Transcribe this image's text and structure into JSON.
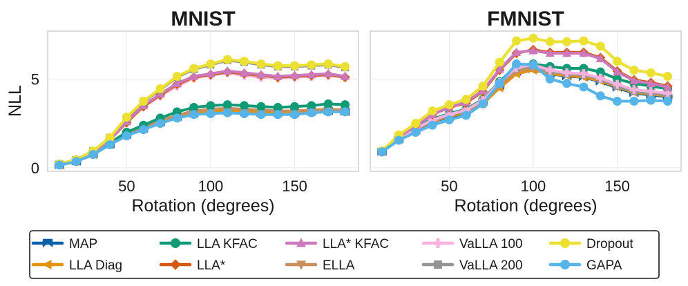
{
  "chart_data": {
    "type": "line",
    "x": [
      10,
      20,
      30,
      40,
      50,
      60,
      70,
      80,
      90,
      100,
      110,
      120,
      130,
      140,
      150,
      160,
      170,
      180
    ],
    "xlabel": "Rotation (degrees)",
    "ylabel": "NLL",
    "xlim": [
      3,
      188
    ],
    "ylim": [
      -0.2,
      7.7
    ],
    "xticks": [
      50,
      100,
      150
    ],
    "yticks": [
      0,
      5
    ],
    "grid": true,
    "legend_position": "bottom-center",
    "styles": {
      "MAP": {
        "color": "#0f5fa8",
        "marker": "bowtie"
      },
      "LLA Diag": {
        "color": "#e1930f",
        "marker": "triangle-left"
      },
      "LLA KFAC": {
        "color": "#109a76",
        "marker": "circle"
      },
      "LLA*": {
        "color": "#d55a0f",
        "marker": "diamond"
      },
      "LLA* KFAC": {
        "color": "#cc78bc",
        "marker": "triangle-up"
      },
      "ELLA": {
        "color": "#c98e5d",
        "marker": "triangle-down"
      },
      "VaLLA 100": {
        "color": "#f9b2de",
        "marker": "plus"
      },
      "VaLLA 200": {
        "color": "#949494",
        "marker": "square"
      },
      "Dropout": {
        "color": "#ece133",
        "marker": "circle"
      },
      "GAPA": {
        "color": "#56b4e9",
        "marker": "circle"
      }
    },
    "legend_order": [
      "MAP",
      "LLA Diag",
      "LLA KFAC",
      "LLA*",
      "LLA* KFAC",
      "ELLA",
      "VaLLA 100",
      "VaLLA 200",
      "Dropout",
      "GAPA"
    ],
    "panels": [
      {
        "title": "MNIST",
        "series": [
          {
            "name": "MAP",
            "values": [
              0.15,
              0.35,
              0.75,
              1.3,
              1.85,
              2.2,
              2.55,
              2.85,
              3.05,
              3.15,
              3.2,
              3.15,
              3.1,
              3.1,
              3.1,
              3.15,
              3.2,
              3.15
            ]
          },
          {
            "name": "LLA Diag",
            "values": [
              0.15,
              0.35,
              0.75,
              1.3,
              1.85,
              2.2,
              2.55,
              2.85,
              3.05,
              3.15,
              3.2,
              3.15,
              3.1,
              3.1,
              3.1,
              3.15,
              3.2,
              3.15
            ]
          },
          {
            "name": "ELLA",
            "values": [
              0.18,
              0.38,
              0.8,
              1.35,
              1.9,
              2.3,
              2.65,
              2.95,
              3.2,
              3.3,
              3.35,
              3.3,
              3.25,
              3.2,
              3.2,
              3.25,
              3.3,
              3.25
            ]
          },
          {
            "name": "LLA KFAC",
            "values": [
              0.2,
              0.4,
              0.85,
              1.4,
              2.0,
              2.4,
              2.8,
              3.15,
              3.4,
              3.5,
              3.55,
              3.5,
              3.45,
              3.4,
              3.45,
              3.5,
              3.6,
              3.55
            ]
          },
          {
            "name": "VaLLA 100",
            "values": [
              0.2,
              0.45,
              0.9,
              1.55,
              2.55,
              3.45,
              4.05,
              4.6,
              5.05,
              5.2,
              5.35,
              5.2,
              5.1,
              5.05,
              5.1,
              5.15,
              5.2,
              5.1
            ]
          },
          {
            "name": "LLA*",
            "values": [
              0.2,
              0.45,
              0.9,
              1.6,
              2.55,
              3.45,
              4.1,
              4.7,
              5.1,
              5.25,
              5.4,
              5.3,
              5.2,
              5.1,
              5.15,
              5.2,
              5.25,
              5.1
            ]
          },
          {
            "name": "LLA* KFAC",
            "values": [
              0.2,
              0.45,
              0.9,
              1.6,
              2.6,
              3.5,
              4.15,
              4.75,
              5.15,
              5.3,
              5.45,
              5.35,
              5.25,
              5.15,
              5.2,
              5.25,
              5.3,
              5.15
            ]
          },
          {
            "name": "VaLLA 200",
            "values": [
              0.22,
              0.45,
              0.95,
              1.7,
              2.8,
              3.7,
              4.4,
              5.1,
              5.55,
              5.8,
              6.05,
              5.95,
              5.8,
              5.7,
              5.7,
              5.75,
              5.8,
              5.65
            ]
          },
          {
            "name": "Dropout",
            "values": [
              0.22,
              0.45,
              0.95,
              1.7,
              2.85,
              3.75,
              4.45,
              5.15,
              5.6,
              5.85,
              6.1,
              6.0,
              5.85,
              5.75,
              5.75,
              5.8,
              5.85,
              5.7
            ]
          },
          {
            "name": "GAPA",
            "values": [
              0.15,
              0.35,
              0.75,
              1.3,
              1.8,
              2.15,
              2.5,
              2.8,
              3.0,
              3.05,
              3.1,
              3.05,
              3.0,
              3.0,
              3.0,
              3.1,
              3.15,
              3.15
            ]
          }
        ]
      },
      {
        "title": "FMNIST",
        "series": [
          {
            "name": "MAP",
            "values": [
              0.9,
              1.6,
              2.1,
              2.6,
              2.85,
              3.1,
              3.7,
              4.6,
              5.4,
              5.55,
              5.3,
              5.15,
              5.1,
              4.85,
              4.5,
              4.2,
              4.1,
              4.0
            ]
          },
          {
            "name": "LLA Diag",
            "values": [
              0.9,
              1.6,
              2.15,
              2.6,
              2.9,
              3.1,
              3.6,
              4.5,
              5.3,
              5.5,
              5.3,
              5.2,
              5.1,
              4.9,
              4.55,
              4.25,
              4.15,
              4.05
            ]
          },
          {
            "name": "ELLA",
            "values": [
              0.9,
              1.65,
              2.2,
              2.7,
              3.0,
              3.2,
              3.7,
              4.65,
              5.45,
              5.6,
              5.4,
              5.3,
              5.2,
              5.0,
              4.6,
              4.35,
              4.25,
              4.15
            ]
          },
          {
            "name": "LLA KFAC",
            "values": [
              0.9,
              1.65,
              2.25,
              2.75,
              3.05,
              3.3,
              3.85,
              4.85,
              5.75,
              5.85,
              5.7,
              5.6,
              5.6,
              5.4,
              5.0,
              4.75,
              4.6,
              4.45
            ]
          },
          {
            "name": "VaLLA 200",
            "values": [
              0.9,
              1.6,
              2.15,
              2.65,
              2.95,
              3.2,
              3.8,
              4.75,
              5.6,
              5.75,
              5.45,
              5.3,
              5.25,
              5.0,
              4.6,
              4.3,
              4.2,
              4.1
            ]
          },
          {
            "name": "VaLLA 100",
            "values": [
              0.9,
              1.65,
              2.2,
              2.7,
              3.0,
              3.25,
              3.8,
              4.8,
              5.65,
              5.8,
              5.5,
              5.35,
              5.3,
              5.05,
              4.7,
              4.4,
              4.3,
              4.2
            ]
          },
          {
            "name": "LLA*",
            "values": [
              0.9,
              1.75,
              2.35,
              3.0,
              3.4,
              3.65,
              4.3,
              5.5,
              6.45,
              6.65,
              6.5,
              6.5,
              6.5,
              6.2,
              5.45,
              4.95,
              4.8,
              4.6
            ]
          },
          {
            "name": "LLA* KFAC",
            "values": [
              0.9,
              1.75,
              2.35,
              3.0,
              3.4,
              3.7,
              4.35,
              5.55,
              6.5,
              6.6,
              6.45,
              6.45,
              6.45,
              6.15,
              5.4,
              4.9,
              4.75,
              4.55
            ]
          },
          {
            "name": "Dropout",
            "values": [
              0.95,
              1.85,
              2.5,
              3.2,
              3.55,
              3.85,
              4.6,
              5.95,
              7.15,
              7.3,
              7.1,
              7.1,
              7.15,
              6.85,
              6.0,
              5.5,
              5.35,
              5.15
            ]
          },
          {
            "name": "GAPA",
            "values": [
              0.9,
              1.55,
              2.0,
              2.4,
              2.7,
              2.95,
              3.6,
              4.75,
              5.85,
              5.8,
              5.0,
              4.75,
              4.55,
              4.05,
              3.75,
              3.75,
              3.8,
              3.75
            ]
          }
        ]
      }
    ]
  }
}
